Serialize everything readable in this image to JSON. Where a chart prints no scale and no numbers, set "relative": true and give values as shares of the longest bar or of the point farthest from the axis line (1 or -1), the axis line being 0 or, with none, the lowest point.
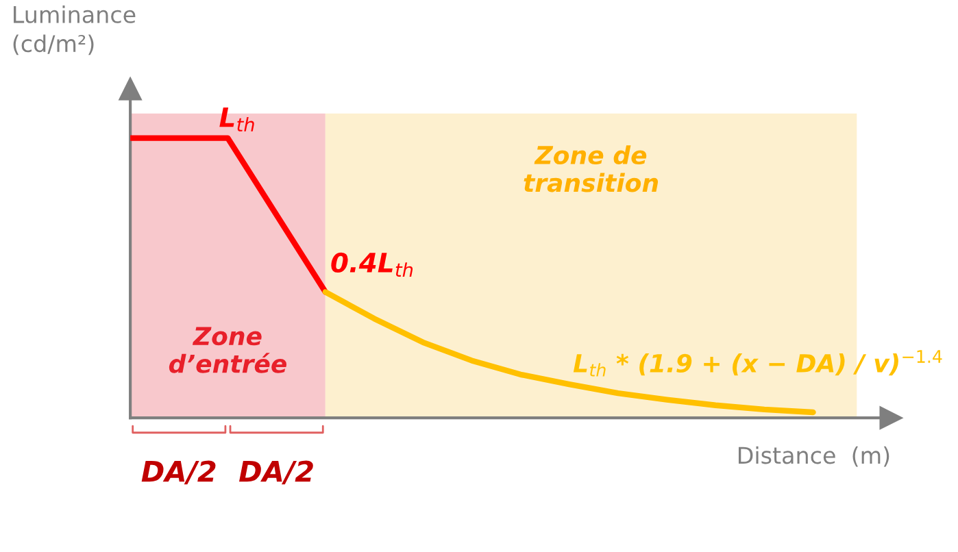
{
  "chart_data": {
    "type": "line",
    "relative": true,
    "xlabel": "Distance  (m)",
    "ylabel": "Luminance\n(cd/m²)",
    "categories": [
      null,
      null,
      null,
      null,
      null,
      null,
      null,
      null,
      null,
      null,
      null,
      null,
      null,
      null,
      null
    ],
    "series": [
      {
        "color": "#ff0000",
        "values": [
          1,
          1,
          1,
          0.725,
          0.45,
          null,
          null,
          null,
          null,
          null,
          null,
          null,
          null,
          null,
          null
        ]
      },
      {
        "color": "#ffc000",
        "values": [
          null,
          null,
          null,
          null,
          0.45,
          0.355,
          0.27,
          0.205,
          0.155,
          0.12,
          0.088,
          0.065,
          0.045,
          0.03,
          0.02
        ]
      }
    ],
    "annotations": [
      "DA/2",
      "DA/2",
      "L$_{th}$",
      "0.4L$_{th}$",
      "L$_{th}$ * (1.9 + (x − DA) / v)$^{−1.4}$",
      "Zone\nd’entrée",
      "Zone de\ntransition"
    ],
    "grid": false,
    "legend": false
  }
}
